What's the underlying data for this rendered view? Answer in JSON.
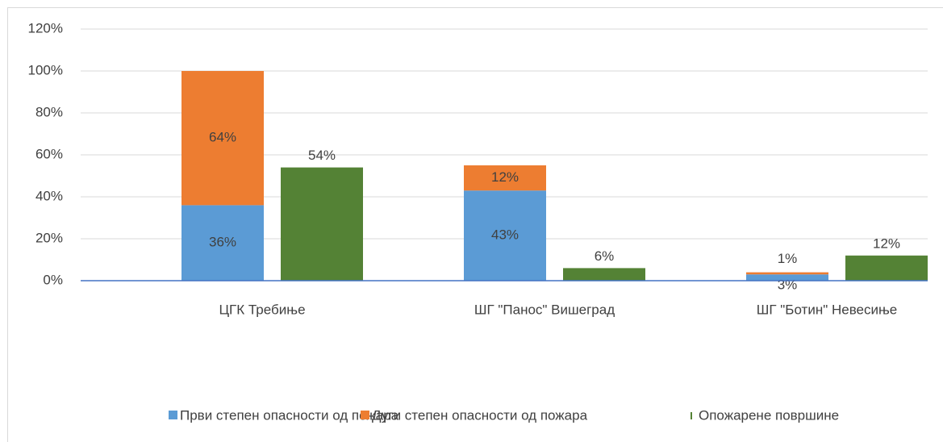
{
  "chart_data": {
    "type": "bar",
    "categories": [
      "ЦГК Требиње",
      "ШГ \"Панос\" Вишеград",
      "ШГ \"Ботин\" Невесиње"
    ],
    "series": [
      {
        "name": "Први степен опасности од пожара",
        "color": "#5b9bd5",
        "stack": 1,
        "values": [
          36,
          43,
          3
        ],
        "value_labels": [
          "36%",
          "43%",
          "3%"
        ]
      },
      {
        "name": "Дуги степен опасности од пожара",
        "color": "#ed7d31",
        "stack": 1,
        "values": [
          64,
          12,
          1
        ],
        "value_labels": [
          "64%",
          "12%",
          "1%"
        ]
      },
      {
        "name": "Опожарене површине",
        "color": "#548235",
        "stack": 2,
        "values": [
          54,
          6,
          12
        ],
        "value_labels": [
          "54%",
          "6%",
          "12%"
        ]
      }
    ],
    "ylim": [
      0,
      120
    ],
    "yticks": [
      {
        "value": 0,
        "label": "0%"
      },
      {
        "value": 20,
        "label": "20%"
      },
      {
        "value": 40,
        "label": "40%"
      },
      {
        "value": 60,
        "label": "60%"
      },
      {
        "value": 80,
        "label": "80%"
      },
      {
        "value": 100,
        "label": "100%"
      },
      {
        "value": 120,
        "label": "120%"
      }
    ],
    "grid": true,
    "legend": "bottom"
  }
}
